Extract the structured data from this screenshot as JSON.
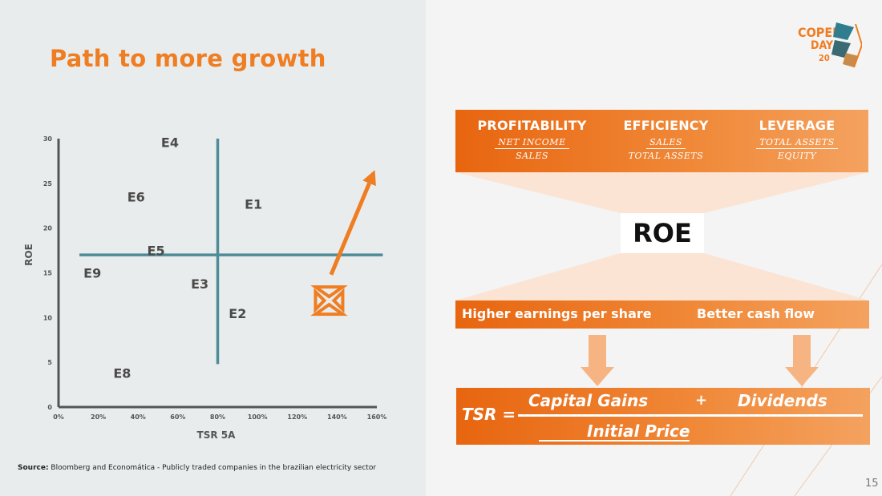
{
  "slide": {
    "title": "Path to more growth",
    "source_label": "Source:",
    "source_text": " Bloomberg and Economática - Publicly traded companies in the brazilian electricity sector",
    "page_number": "15"
  },
  "logo": {
    "line1": "COPEL",
    "line2": "DAY",
    "year": "20"
  },
  "chart_data": {
    "type": "scatter",
    "xlabel": "TSR 5A",
    "ylabel": "ROE",
    "xlim": [
      0,
      160
    ],
    "ylim": [
      0,
      30
    ],
    "x_ticks": [
      "0%",
      "20%",
      "40%",
      "60%",
      "80%",
      "100%",
      "120%",
      "140%",
      "160%"
    ],
    "y_ticks": [
      "0",
      "5",
      "10",
      "15",
      "20",
      "25",
      "30"
    ],
    "quadrant_lines": {
      "x": 80,
      "y": 17
    },
    "points": [
      {
        "label": "E1",
        "x": 98,
        "y": 22.7
      },
      {
        "label": "E2",
        "x": 90,
        "y": 10.5
      },
      {
        "label": "E3",
        "x": 71,
        "y": 13.8
      },
      {
        "label": "E4",
        "x": 56,
        "y": 29.6
      },
      {
        "label": "E5",
        "x": 49,
        "y": 17.5
      },
      {
        "label": "E6",
        "x": 39,
        "y": 23.5
      },
      {
        "label": "E7",
        "x": 136,
        "y": 11.9,
        "display": "logo"
      },
      {
        "label": "E8",
        "x": 32,
        "y": 3.8
      },
      {
        "label": "E9",
        "x": 17,
        "y": 15.0
      }
    ],
    "growth_arrow": {
      "from": [
        137,
        14.8
      ],
      "to": [
        159,
        26.5
      ]
    },
    "colors": {
      "axis": "#555555",
      "quadrant": "#4e8c98",
      "label": "#4a4a4a",
      "accent": "#ef7d22"
    }
  },
  "ratios": [
    {
      "head": "PROFITABILITY",
      "num": "NET INCOME",
      "den": "SALES"
    },
    {
      "head": "EFFICIENCY",
      "num": "SALES",
      "den": "TOTAL ASSETS"
    },
    {
      "head": "LEVERAGE",
      "num": "TOTAL ASSETS",
      "den": "EQUITY"
    }
  ],
  "roe_label": "ROE",
  "benefits": {
    "left": "Higher earnings per share",
    "right": "Better cash flow"
  },
  "formula": {
    "lhs": "TSR =",
    "term1": "Capital Gains",
    "plus": "+",
    "term2": "Dividends",
    "denominator": "Initial Price"
  },
  "colors": {
    "brand_orange": "#ef7d22",
    "teal": "#4e8c98"
  }
}
